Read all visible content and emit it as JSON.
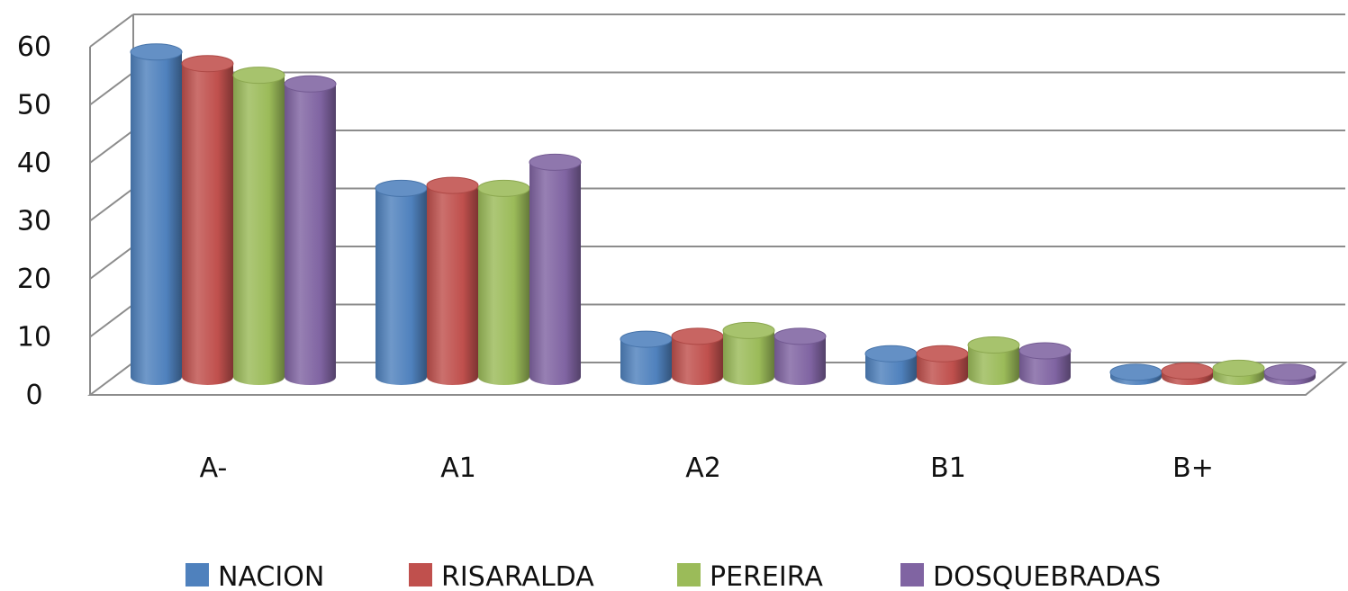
{
  "chart_data": {
    "type": "bar",
    "categories": [
      "A-",
      "A1",
      "A2",
      "B1",
      "B+"
    ],
    "series": [
      {
        "name": "NACION",
        "color": "#4f81bd",
        "values": [
          56,
          32.5,
          6.5,
          4,
          0.8
        ]
      },
      {
        "name": "RISARALDA",
        "color": "#c0504d",
        "values": [
          54,
          33,
          7,
          4,
          1
        ]
      },
      {
        "name": "PEREIRA",
        "color": "#9bbb59",
        "values": [
          52,
          32.5,
          8,
          5.5,
          1.5
        ]
      },
      {
        "name": "DOSQUEBRADAS",
        "color": "#8064a2",
        "values": [
          50.5,
          37,
          7,
          4.5,
          0.8
        ]
      }
    ],
    "yticks": [
      0,
      10,
      20,
      30,
      40,
      50,
      60
    ],
    "ylim": [
      0,
      60
    ],
    "grid": true,
    "legend": "bottom",
    "style": "3d-cylinder"
  }
}
